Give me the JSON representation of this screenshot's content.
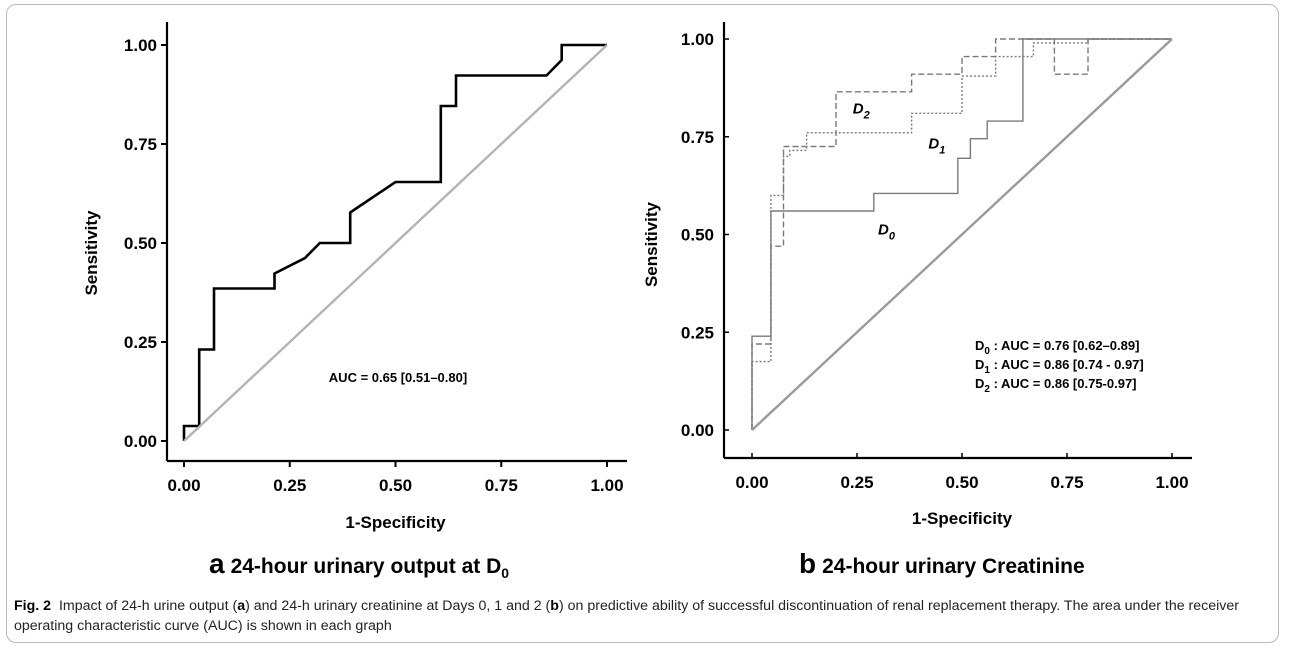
{
  "chart_data": [
    {
      "panel": "a",
      "type": "line",
      "title": "24-hour urinary output at D0",
      "xlabel": "1-Specificity",
      "ylabel": "Sensitivity",
      "xlim": [
        0,
        1
      ],
      "ylim": [
        0,
        1
      ],
      "x_ticks": [
        "0.00",
        "0.25",
        "0.50",
        "0.75",
        "1.00"
      ],
      "y_ticks": [
        "0.00",
        "0.25",
        "0.50",
        "0.75",
        "1.00"
      ],
      "annotation": "AUC = 0.65 [0.51–0.80]",
      "series": [
        {
          "style": "solid",
          "color": "#000000",
          "x": [
            0,
            0,
            0.036,
            0.036,
            0.071,
            0.071,
            0.214,
            0.214,
            0.286,
            0.321,
            0.393,
            0.393,
            0.5,
            0.607,
            0.607,
            0.643,
            0.643,
            0.857,
            0.893,
            0.893,
            1.0
          ],
          "y": [
            0,
            0.038,
            0.038,
            0.231,
            0.231,
            0.385,
            0.385,
            0.423,
            0.462,
            0.5,
            0.5,
            0.577,
            0.654,
            0.654,
            0.846,
            0.846,
            0.923,
            0.923,
            0.962,
            1.0,
            1.0
          ]
        },
        {
          "style": "reference",
          "color": "#b3b3b3",
          "x": [
            0,
            1
          ],
          "y": [
            0,
            1
          ]
        }
      ]
    },
    {
      "panel": "b",
      "type": "line",
      "title": "24-hour urinary Creatinine",
      "xlabel": "1-Specificity",
      "ylabel": "Sensitivity",
      "xlim": [
        0,
        1
      ],
      "ylim": [
        0,
        1
      ],
      "x_ticks": [
        "0.00",
        "0.25",
        "0.50",
        "0.75",
        "1.00"
      ],
      "y_ticks": [
        "0.00",
        "0.25",
        "0.50",
        "0.75",
        "1.00"
      ],
      "annotations": [
        {
          "sym": "D",
          "sub": "0",
          "text": " : AUC = 0.76 [0.62–0.89]"
        },
        {
          "sym": "D",
          "sub": "1",
          "text": " : AUC = 0.86 [0.74 - 0.97]"
        },
        {
          "sym": "D",
          "sub": "2",
          "text": " : AUC = 0.86 [0.75-0.97]"
        }
      ],
      "series": [
        {
          "name": "D0",
          "style": "solid",
          "color": "#7a7a7a",
          "x": [
            0,
            0,
            0.045,
            0.045,
            0.29,
            0.29,
            0.49,
            0.49,
            0.52,
            0.52,
            0.56,
            0.56,
            0.645,
            0.645,
            1.0
          ],
          "y": [
            0,
            0.24,
            0.24,
            0.56,
            0.56,
            0.605,
            0.605,
            0.695,
            0.695,
            0.745,
            0.745,
            0.79,
            0.79,
            1.0,
            1.0
          ]
        },
        {
          "name": "D1",
          "style": "dotted",
          "color": "#7a7a7a",
          "x": [
            0,
            0,
            0.045,
            0.045,
            0.075,
            0.075,
            0.09,
            0.09,
            0.13,
            0.13,
            0.38,
            0.38,
            0.5,
            0.5,
            0.58,
            0.58,
            0.67,
            0.67,
            0.8,
            0.8,
            1.0
          ],
          "y": [
            0,
            0.175,
            0.175,
            0.6,
            0.6,
            0.7,
            0.7,
            0.715,
            0.715,
            0.76,
            0.76,
            0.81,
            0.81,
            0.905,
            0.905,
            0.955,
            0.955,
            0.99,
            0.99,
            1.0,
            1.0
          ]
        },
        {
          "name": "D2",
          "style": "dashed",
          "color": "#7a7a7a",
          "x": [
            0,
            0,
            0.045,
            0.045,
            0.075,
            0.075,
            0.09,
            0.09,
            0.2,
            0.2,
            0.38,
            0.38,
            0.5,
            0.5,
            0.58,
            0.58,
            0.72,
            0.72,
            0.8,
            0.8,
            1.0
          ],
          "y": [
            0,
            0.22,
            0.22,
            0.47,
            0.47,
            0.725,
            0.725,
            0.725,
            0.725,
            0.865,
            0.865,
            0.91,
            0.91,
            0.955,
            0.955,
            1.0,
            1.0,
            0.91,
            0.91,
            1.0,
            1.0
          ]
        },
        {
          "style": "reference",
          "color": "#9a9a9a",
          "x": [
            0,
            1
          ],
          "y": [
            0,
            1
          ]
        }
      ],
      "curve_labels": [
        {
          "sym": "D",
          "sub": "2",
          "x": 0.24,
          "y": 0.81
        },
        {
          "sym": "D",
          "sub": "1",
          "x": 0.42,
          "y": 0.72
        },
        {
          "sym": "D",
          "sub": "0",
          "x": 0.3,
          "y": 0.5
        }
      ]
    }
  ],
  "panel_titles": {
    "a_letter": "a",
    "a_text": "24-hour urinary output at D",
    "a_sub": "0",
    "b_letter": "b",
    "b_text": "24-hour urinary Creatinine"
  },
  "caption": {
    "fig": "Fig. 2",
    "t1": "Impact of 24-h urine output (",
    "a": "a",
    "t2": ") and 24-h urinary creatinine at Days 0, 1 and 2 (",
    "b": "b",
    "t3": ") on predictive ability of successful discontinuation of renal replacement therapy. The area under the receiver operating characteristic curve (AUC) is shown in each graph"
  }
}
